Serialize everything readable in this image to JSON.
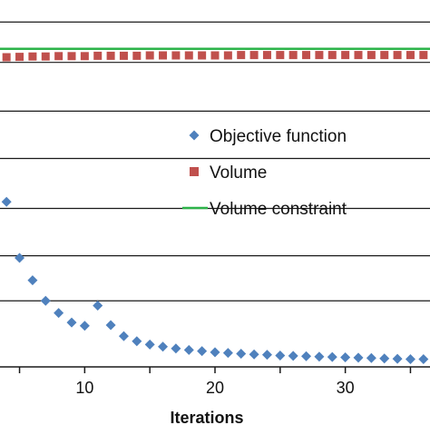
{
  "chart_data": {
    "type": "scatter",
    "xlabel": "Iterations",
    "xlim": [
      3.5,
      36.5
    ],
    "ylim": [
      0,
      1
    ],
    "x_ticks": [
      10,
      20,
      30
    ],
    "y_gridlines": [
      0.94,
      0.83,
      0.697,
      0.568,
      0.432,
      0.303,
      0.18
    ],
    "grid": "horizontal",
    "legend_position": "right-middle",
    "series": [
      {
        "name": "Objective function",
        "marker": "diamond",
        "color": "#4f81bd",
        "x": [
          4,
          5,
          6,
          7,
          8,
          9,
          10,
          11,
          12,
          13,
          14,
          15,
          16,
          17,
          18,
          19,
          20,
          21,
          22,
          23,
          24,
          25,
          26,
          27,
          28,
          29,
          30,
          31,
          32,
          33,
          34,
          35,
          36
        ],
        "y": [
          0.45,
          0.297,
          0.236,
          0.18,
          0.147,
          0.121,
          0.112,
          0.167,
          0.114,
          0.084,
          0.07,
          0.061,
          0.055,
          0.05,
          0.046,
          0.043,
          0.04,
          0.038,
          0.036,
          0.034,
          0.033,
          0.031,
          0.03,
          0.029,
          0.028,
          0.027,
          0.026,
          0.025,
          0.024,
          0.023,
          0.022,
          0.021,
          0.021
        ]
      },
      {
        "name": "Volume",
        "marker": "square",
        "color": "#c0504d",
        "x": [
          4,
          5,
          6,
          7,
          8,
          9,
          10,
          11,
          12,
          13,
          14,
          15,
          16,
          17,
          18,
          19,
          20,
          21,
          22,
          23,
          24,
          25,
          26,
          27,
          28,
          29,
          30,
          31,
          32,
          33,
          34,
          35,
          36
        ],
        "y": [
          0.844,
          0.845,
          0.846,
          0.846,
          0.847,
          0.847,
          0.847,
          0.848,
          0.848,
          0.848,
          0.848,
          0.849,
          0.849,
          0.849,
          0.849,
          0.849,
          0.849,
          0.849,
          0.85,
          0.85,
          0.85,
          0.85,
          0.85,
          0.85,
          0.85,
          0.85,
          0.85,
          0.85,
          0.85,
          0.85,
          0.85,
          0.85,
          0.85
        ]
      },
      {
        "name": "Volume constraint",
        "marker": "line",
        "color": "#2db34a",
        "x": [
          3.5,
          36.5
        ],
        "y": [
          0.867,
          0.867
        ]
      }
    ]
  }
}
